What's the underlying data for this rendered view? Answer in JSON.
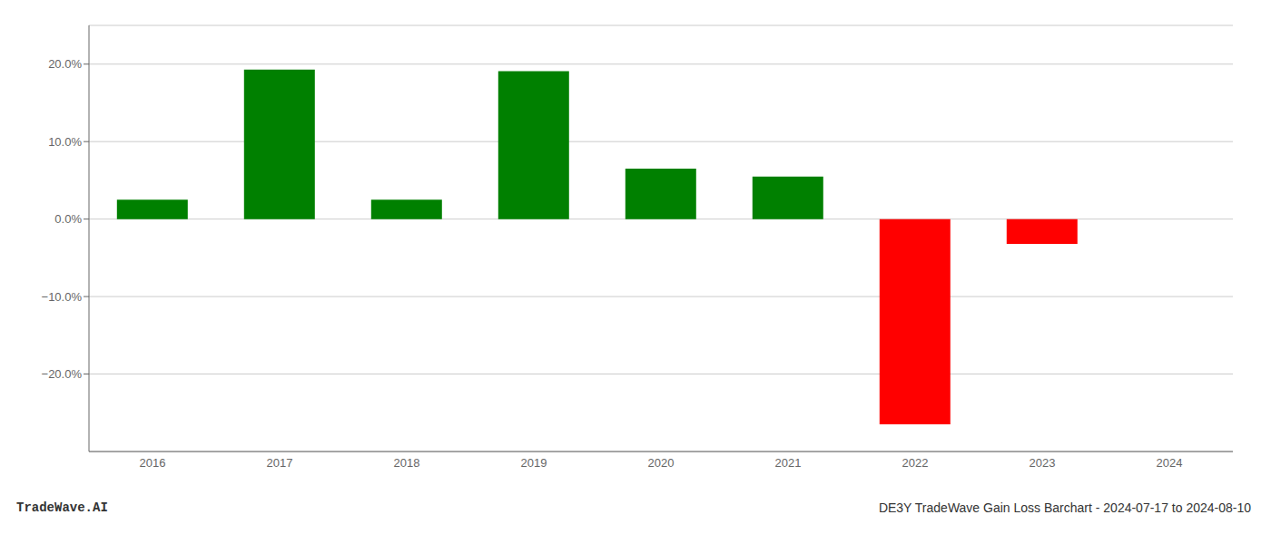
{
  "chart_data": {
    "type": "bar",
    "categories": [
      "2016",
      "2017",
      "2018",
      "2019",
      "2020",
      "2021",
      "2022",
      "2023",
      "2024"
    ],
    "values": [
      2.5,
      19.3,
      2.5,
      19.1,
      6.5,
      5.5,
      -26.5,
      -3.2,
      null
    ],
    "colors": [
      "#008000",
      "#008000",
      "#008000",
      "#008000",
      "#008000",
      "#008000",
      "#ff0000",
      "#ff0000",
      null
    ],
    "ylim": [
      -30,
      25
    ],
    "yticks": [
      {
        "value": -20,
        "label": "−20.0%"
      },
      {
        "value": -10,
        "label": "−10.0%"
      },
      {
        "value": 0,
        "label": "0.0%"
      },
      {
        "value": 10,
        "label": "10.0%"
      },
      {
        "value": 20,
        "label": "20.0%"
      }
    ],
    "grid": true,
    "annotations": [
      "TradeWave.AI",
      "DE3Y TradeWave Gain Loss Barchart - 2024-07-17 to 2024-08-10"
    ]
  }
}
